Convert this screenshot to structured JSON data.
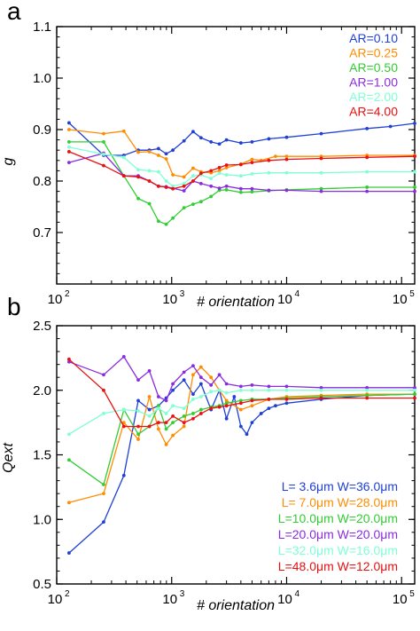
{
  "chart_data": [
    {
      "type": "line",
      "panel_label": "a",
      "xlabel": "# orientation",
      "ylabel": "g",
      "x_scale": "log",
      "xlim": [
        100,
        130000
      ],
      "ylim": [
        0.6,
        1.1
      ],
      "yticks": [
        "0.7",
        "0.8",
        "0.9",
        "1.0",
        "1.1"
      ],
      "xticks": [
        {
          "base": "10",
          "exp": "2"
        },
        {
          "base": "10",
          "exp": "3"
        },
        {
          "base": "10",
          "exp": "4"
        },
        {
          "base": "10",
          "exp": "5"
        }
      ],
      "legend_position": "top-right",
      "series": [
        {
          "name": "AR=0.10",
          "color": "#1f3fd6",
          "x": [
            128,
            256,
            384,
            512,
            640,
            768,
            896,
            1024,
            1280,
            1536,
            1800,
            2200,
            2600,
            3000,
            4000,
            5000,
            7000,
            10000,
            20000,
            50000,
            80000,
            130000
          ],
          "y": [
            0.913,
            0.85,
            0.85,
            0.86,
            0.86,
            0.863,
            0.853,
            0.86,
            0.878,
            0.896,
            0.884,
            0.876,
            0.872,
            0.88,
            0.874,
            0.876,
            0.882,
            0.885,
            0.892,
            0.902,
            0.906,
            0.912
          ]
        },
        {
          "name": "AR=0.25",
          "color": "#ff8c00",
          "x": [
            128,
            256,
            384,
            512,
            640,
            768,
            896,
            1024,
            1280,
            1536,
            1800,
            2200,
            2600,
            3000,
            4000,
            5000,
            6000,
            8000,
            10000,
            20000,
            50000,
            130000
          ],
          "y": [
            0.9,
            0.892,
            0.897,
            0.856,
            0.857,
            0.85,
            0.843,
            0.812,
            0.808,
            0.825,
            0.818,
            0.816,
            0.82,
            0.826,
            0.833,
            0.842,
            0.84,
            0.848,
            0.848,
            0.848,
            0.85,
            0.85
          ]
        },
        {
          "name": "AR=0.50",
          "color": "#32cd32",
          "x": [
            128,
            256,
            384,
            512,
            640,
            768,
            896,
            1024,
            1280,
            1536,
            1800,
            2200,
            2600,
            3000,
            4000,
            5000,
            7000,
            10000,
            20000,
            50000,
            130000
          ],
          "y": [
            0.876,
            0.876,
            0.81,
            0.766,
            0.756,
            0.722,
            0.716,
            0.728,
            0.748,
            0.755,
            0.76,
            0.77,
            0.782,
            0.783,
            0.778,
            0.779,
            0.781,
            0.783,
            0.785,
            0.788,
            0.788
          ]
        },
        {
          "name": "AR=1.00",
          "color": "#8a2be2",
          "x": [
            128,
            256,
            384,
            512,
            640,
            768,
            896,
            1024,
            1280,
            1536,
            1800,
            2200,
            2600,
            3000,
            4000,
            5000,
            7000,
            10000,
            20000,
            50000,
            130000
          ],
          "y": [
            0.836,
            0.854,
            0.81,
            0.81,
            0.8,
            0.79,
            0.789,
            0.786,
            0.781,
            0.8,
            0.795,
            0.79,
            0.786,
            0.79,
            0.785,
            0.785,
            0.782,
            0.782,
            0.78,
            0.78,
            0.78
          ]
        },
        {
          "name": "AR=2.00",
          "color": "#7fffd4",
          "x": [
            128,
            256,
            384,
            512,
            640,
            768,
            896,
            1024,
            1280,
            1536,
            1800,
            2200,
            2600,
            3000,
            4000,
            5000,
            7000,
            10000,
            20000,
            50000,
            130000
          ],
          "y": [
            0.866,
            0.852,
            0.846,
            0.822,
            0.82,
            0.818,
            0.8,
            0.79,
            0.795,
            0.81,
            0.812,
            0.805,
            0.815,
            0.812,
            0.81,
            0.814,
            0.816,
            0.816,
            0.816,
            0.818,
            0.818
          ]
        },
        {
          "name": "AR=4.00",
          "color": "#e81010",
          "x": [
            128,
            256,
            384,
            512,
            640,
            768,
            896,
            1024,
            1280,
            1536,
            1800,
            2200,
            2600,
            3000,
            4000,
            5000,
            7000,
            10000,
            20000,
            50000,
            130000
          ],
          "y": [
            0.857,
            0.83,
            0.81,
            0.808,
            0.8,
            0.79,
            0.788,
            0.785,
            0.79,
            0.8,
            0.815,
            0.82,
            0.826,
            0.831,
            0.832,
            0.836,
            0.84,
            0.842,
            0.844,
            0.846,
            0.848
          ]
        }
      ]
    },
    {
      "type": "line",
      "panel_label": "b",
      "xlabel": "# orientation",
      "ylabel": "Qext",
      "x_scale": "log",
      "xlim": [
        100,
        130000
      ],
      "ylim": [
        0.5,
        2.5
      ],
      "yticks": [
        "0.5",
        "1.0",
        "1.5",
        "2.0",
        "2.5"
      ],
      "xticks": [
        {
          "base": "10",
          "exp": "2"
        },
        {
          "base": "10",
          "exp": "3"
        },
        {
          "base": "10",
          "exp": "4"
        },
        {
          "base": "10",
          "exp": "5"
        }
      ],
      "legend_position": "bottom-right",
      "series": [
        {
          "name": "L=  3.6μm  W=36.0μm",
          "color": "#1f3fd6",
          "x": [
            128,
            256,
            384,
            512,
            640,
            768,
            896,
            1024,
            1280,
            1536,
            1800,
            2200,
            2600,
            3000,
            3500,
            4000,
            4500,
            5000,
            6000,
            7000,
            8000,
            10000,
            20000,
            50000,
            130000
          ],
          "y": [
            0.74,
            0.98,
            1.34,
            1.92,
            1.85,
            1.88,
            1.94,
            2.0,
            2.08,
            1.97,
            2.05,
            1.85,
            2.0,
            1.78,
            1.95,
            1.72,
            1.66,
            1.75,
            1.82,
            1.86,
            1.88,
            1.9,
            1.93,
            1.96,
            1.97
          ]
        },
        {
          "name": "L=  7.0μm  W=28.0μm",
          "color": "#ff8c00",
          "x": [
            128,
            256,
            384,
            512,
            640,
            768,
            896,
            1024,
            1280,
            1536,
            1800,
            2200,
            2600,
            3000,
            4000,
            5000,
            7000,
            10000,
            20000,
            50000,
            130000
          ],
          "y": [
            1.13,
            1.2,
            1.75,
            1.62,
            1.95,
            1.7,
            1.58,
            1.65,
            1.72,
            2.12,
            2.18,
            2.1,
            2.0,
            1.92,
            1.85,
            1.88,
            1.93,
            1.95,
            1.96,
            1.97,
            1.97
          ]
        },
        {
          "name": "L=10.0μm  W=20.0μm",
          "color": "#32cd32",
          "x": [
            128,
            256,
            384,
            512,
            640,
            768,
            896,
            1024,
            1280,
            1536,
            1800,
            2200,
            2600,
            3000,
            4000,
            5000,
            7000,
            10000,
            20000,
            50000,
            130000
          ],
          "y": [
            1.46,
            1.27,
            1.85,
            1.66,
            1.72,
            1.88,
            1.7,
            1.75,
            1.8,
            1.82,
            1.85,
            1.87,
            1.88,
            1.9,
            1.92,
            1.93,
            1.93,
            1.94,
            1.95,
            1.96,
            1.97
          ]
        },
        {
          "name": "L=20.0μm  W=20.0μm",
          "color": "#8a2be2",
          "x": [
            128,
            256,
            384,
            512,
            640,
            768,
            896,
            1024,
            1280,
            1536,
            1800,
            2200,
            2600,
            3000,
            4000,
            5000,
            7000,
            10000,
            20000,
            50000,
            130000
          ],
          "y": [
            2.22,
            2.12,
            2.26,
            2.08,
            2.15,
            1.95,
            1.92,
            2.05,
            2.14,
            2.19,
            2.1,
            2.04,
            2.12,
            2.05,
            2.03,
            2.04,
            2.03,
            2.03,
            2.02,
            2.02,
            2.02
          ]
        },
        {
          "name": "L=32.0μm  W=16.0μm",
          "color": "#7fffd4",
          "x": [
            128,
            256,
            384,
            512,
            640,
            768,
            896,
            1024,
            1280,
            1536,
            1800,
            2200,
            2600,
            3000,
            4000,
            5000,
            7000,
            10000,
            20000,
            50000,
            130000
          ],
          "y": [
            1.66,
            1.82,
            1.85,
            1.84,
            1.8,
            1.86,
            1.82,
            1.88,
            1.86,
            1.93,
            1.95,
            1.99,
            2.0,
            1.98,
            2.0,
            2.0,
            2.0,
            2.0,
            2.0,
            2.0,
            2.0
          ]
        },
        {
          "name": "L=48.0μm  W=12.0μm",
          "color": "#e81010",
          "x": [
            128,
            256,
            384,
            512,
            640,
            768,
            896,
            1024,
            1280,
            1536,
            1800,
            2200,
            2600,
            3000,
            4000,
            5000,
            7000,
            10000,
            20000,
            50000,
            130000
          ],
          "y": [
            2.24,
            2.0,
            1.72,
            1.72,
            1.72,
            1.75,
            1.75,
            1.8,
            1.75,
            1.78,
            1.82,
            1.86,
            1.87,
            1.88,
            1.9,
            1.92,
            1.93,
            1.93,
            1.94,
            1.94,
            1.94
          ]
        }
      ]
    }
  ]
}
